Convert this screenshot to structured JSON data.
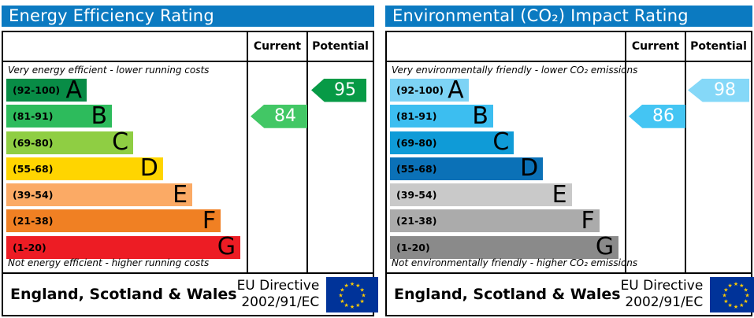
{
  "theme": {
    "header_bg": "#0b7ac1",
    "border": "#000000",
    "flag_bg": "#003399",
    "flag_star": "#ffcc00"
  },
  "panels": [
    {
      "title": "Energy Efficiency Rating",
      "columns": {
        "current": "Current",
        "potential": "Potential"
      },
      "top_note": "Very energy efficient - lower running costs",
      "bottom_note": "Not energy efficient - higher running costs",
      "bands": [
        {
          "range": "(92-100)",
          "letter": "A",
          "color": "#088c46",
          "width_pct": 34
        },
        {
          "range": "(81-91)",
          "letter": "B",
          "color": "#2dbb5c",
          "width_pct": 44.7
        },
        {
          "range": "(69-80)",
          "letter": "C",
          "color": "#8fce43",
          "width_pct": 53.7
        },
        {
          "range": "(55-68)",
          "letter": "D",
          "color": "#ffd500",
          "width_pct": 66.3
        },
        {
          "range": "(39-54)",
          "letter": "E",
          "color": "#fbaa65",
          "width_pct": 78.7
        },
        {
          "range": "(21-38)",
          "letter": "F",
          "color": "#f08023",
          "width_pct": 90.7
        },
        {
          "range": "(1-20)",
          "letter": "G",
          "color": "#ed1c24",
          "width_pct": 99
        }
      ],
      "current": {
        "value": "84",
        "band_index": 1,
        "color": "#42c765"
      },
      "potential": {
        "value": "95",
        "band_index": 0,
        "color": "#079a46"
      },
      "footer": {
        "region": "England, Scotland & Wales",
        "directive_line1": "EU Directive",
        "directive_line2": "2002/91/EC"
      }
    },
    {
      "title": "Environmental (CO₂) Impact Rating",
      "columns": {
        "current": "Current",
        "potential": "Potential"
      },
      "top_note": "Very environmentally friendly - lower CO₂ emissions",
      "bottom_note": "Not environmentally friendly - higher CO₂ emissions",
      "bands": [
        {
          "range": "(92-100)",
          "letter": "A",
          "color": "#7dd3f5",
          "width_pct": 34
        },
        {
          "range": "(81-91)",
          "letter": "B",
          "color": "#3cbef0",
          "width_pct": 44.7
        },
        {
          "range": "(69-80)",
          "letter": "C",
          "color": "#0f9bd7",
          "width_pct": 53.7
        },
        {
          "range": "(55-68)",
          "letter": "D",
          "color": "#0b71b7",
          "width_pct": 66.3
        },
        {
          "range": "(39-54)",
          "letter": "E",
          "color": "#c9c9c9",
          "width_pct": 78.7
        },
        {
          "range": "(21-38)",
          "letter": "F",
          "color": "#ababab",
          "width_pct": 90.7
        },
        {
          "range": "(1-20)",
          "letter": "G",
          "color": "#8a8a8a",
          "width_pct": 99
        }
      ],
      "current": {
        "value": "86",
        "band_index": 1,
        "color": "#44c5f3"
      },
      "potential": {
        "value": "98",
        "band_index": 0,
        "color": "#85d8f8"
      },
      "footer": {
        "region": "England, Scotland & Wales",
        "directive_line1": "EU Directive",
        "directive_line2": "2002/91/EC"
      }
    }
  ],
  "chart_data": [
    {
      "type": "bar",
      "title": "Energy Efficiency Rating",
      "categories": [
        "A (92-100)",
        "B (81-91)",
        "C (69-80)",
        "D (55-68)",
        "E (39-54)",
        "F (21-38)",
        "G (1-20)"
      ],
      "band_ranges": [
        [
          92,
          100
        ],
        [
          81,
          91
        ],
        [
          69,
          80
        ],
        [
          55,
          68
        ],
        [
          39,
          54
        ],
        [
          21,
          38
        ],
        [
          1,
          20
        ]
      ],
      "current_rating": 84,
      "current_band": "B",
      "potential_rating": 95,
      "potential_band": "A",
      "scale": [
        1,
        100
      ],
      "annotations": [
        "Very energy efficient - lower running costs",
        "Not energy efficient - higher running costs",
        "England, Scotland & Wales",
        "EU Directive 2002/91/EC"
      ]
    },
    {
      "type": "bar",
      "title": "Environmental (CO₂) Impact Rating",
      "categories": [
        "A (92-100)",
        "B (81-91)",
        "C (69-80)",
        "D (55-68)",
        "E (39-54)",
        "F (21-38)",
        "G (1-20)"
      ],
      "band_ranges": [
        [
          92,
          100
        ],
        [
          81,
          91
        ],
        [
          69,
          80
        ],
        [
          55,
          68
        ],
        [
          39,
          54
        ],
        [
          21,
          38
        ],
        [
          1,
          20
        ]
      ],
      "current_rating": 86,
      "current_band": "B",
      "potential_rating": 98,
      "potential_band": "A",
      "scale": [
        1,
        100
      ],
      "annotations": [
        "Very environmentally friendly - lower CO₂ emissions",
        "Not environmentally friendly - higher CO₂ emissions",
        "England, Scotland & Wales",
        "EU Directive 2002/91/EC"
      ]
    }
  ]
}
